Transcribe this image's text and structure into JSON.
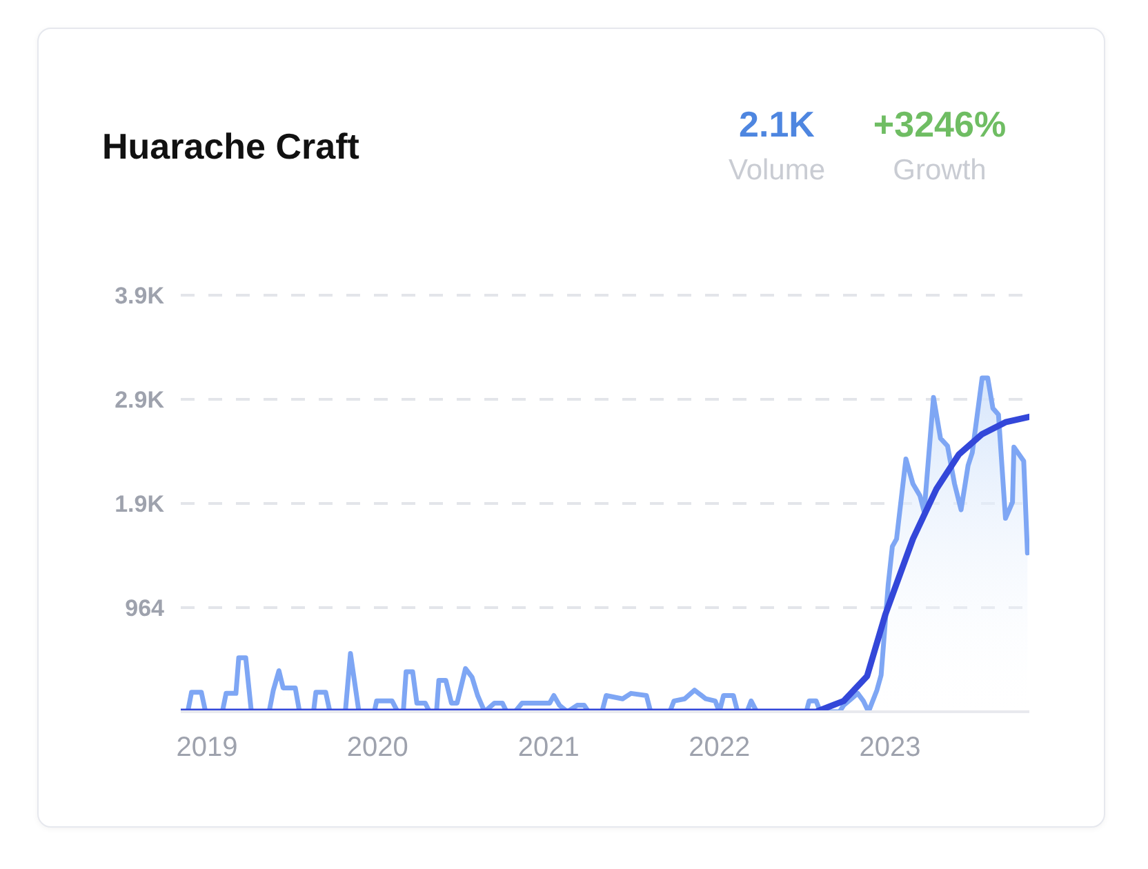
{
  "chart_data": {
    "type": "line",
    "title": "Huarache Craft",
    "annotations": [
      "2.1K",
      "Volume",
      "+3246%",
      "Growth"
    ],
    "xlim": [
      "2018-11-06",
      "2023-10-26"
    ],
    "xticks": [
      "2019",
      "2020",
      "2021",
      "2022",
      "2023"
    ],
    "ylim": [
      0,
      3856
    ],
    "yticks": [
      {
        "value": 964,
        "label": "964"
      },
      {
        "value": 1928,
        "label": "1.9K"
      },
      {
        "value": 2892,
        "label": "2.9K"
      },
      {
        "value": 3856,
        "label": "3.9K"
      }
    ],
    "grid": "y",
    "legend": false,
    "marker": "none",
    "line_style": "solid",
    "series": [
      {
        "type": "area",
        "color": "#7ea6f4",
        "x": [
          "2018-11-06",
          "2018-11-21",
          "2018-11-29",
          "2018-12-20",
          "2018-12-29",
          "2019-02-03",
          "2019-02-11",
          "2019-03-04",
          "2019-03-10",
          "2019-03-25",
          "2019-04-06",
          "2019-05-14",
          "2019-05-23",
          "2019-06-04",
          "2019-06-13",
          "2019-07-09",
          "2019-07-18",
          "2019-08-17",
          "2019-08-22",
          "2019-09-12",
          "2019-09-21",
          "2019-10-24",
          "2019-11-04",
          "2019-11-22",
          "2019-12-25",
          "2019-12-30",
          "2020-02-01",
          "2020-02-13",
          "2020-02-25",
          "2020-03-02",
          "2020-03-16",
          "2020-03-25",
          "2020-04-12",
          "2020-04-21",
          "2020-05-06",
          "2020-05-11",
          "2020-05-26",
          "2020-06-07",
          "2020-06-19",
          "2020-07-07",
          "2020-07-21",
          "2020-08-02",
          "2020-08-17",
          "2020-09-07",
          "2020-09-24",
          "2020-10-03",
          "2020-10-21",
          "2020-11-05",
          "2021-01-03",
          "2021-01-12",
          "2021-01-24",
          "2021-02-10",
          "2021-03-03",
          "2021-03-18",
          "2021-03-27",
          "2021-04-25",
          "2021-05-04",
          "2021-06-08",
          "2021-06-26",
          "2021-07-29",
          "2021-08-07",
          "2021-09-17",
          "2021-09-26",
          "2021-10-19",
          "2021-11-09",
          "2021-12-03",
          "2021-12-23",
          "2022-01-01",
          "2022-01-10",
          "2022-01-31",
          "2022-02-09",
          "2022-03-01",
          "2022-03-10",
          "2022-03-22",
          "2022-07-06",
          "2022-07-12",
          "2022-07-27",
          "2022-08-05",
          "2022-09-15",
          "2022-09-24",
          "2022-10-24",
          "2022-11-05",
          "2022-11-16",
          "2022-12-04",
          "2022-12-13",
          "2022-12-28",
          "2023-01-06",
          "2023-01-15",
          "2023-02-04",
          "2023-02-19",
          "2023-03-06",
          "2023-03-15",
          "2023-04-04",
          "2023-04-19",
          "2023-05-04",
          "2023-05-19",
          "2023-06-02",
          "2023-06-17",
          "2023-06-26",
          "2023-07-17",
          "2023-07-29",
          "2023-08-09",
          "2023-08-21",
          "2023-09-05",
          "2023-09-20",
          "2023-09-23",
          "2023-10-14",
          "2023-10-22"
        ],
        "values": [
          0,
          0,
          180,
          180,
          0,
          0,
          170,
          170,
          500,
          500,
          0,
          0,
          200,
          380,
          220,
          220,
          0,
          0,
          180,
          180,
          0,
          0,
          540,
          0,
          0,
          100,
          100,
          0,
          0,
          370,
          370,
          80,
          80,
          0,
          0,
          290,
          290,
          80,
          80,
          400,
          320,
          150,
          0,
          80,
          80,
          0,
          0,
          80,
          80,
          150,
          60,
          0,
          60,
          60,
          0,
          0,
          150,
          120,
          170,
          150,
          0,
          0,
          100,
          120,
          200,
          120,
          100,
          0,
          150,
          150,
          0,
          0,
          100,
          0,
          0,
          100,
          100,
          0,
          0,
          60,
          170,
          100,
          0,
          200,
          340,
          1170,
          1530,
          1600,
          2340,
          2110,
          2000,
          1850,
          2910,
          2530,
          2460,
          2110,
          1870,
          2280,
          2400,
          3090,
          3090,
          2810,
          2750,
          1790,
          1940,
          2450,
          2320,
          1470
        ]
      },
      {
        "type": "line",
        "color": "#3347d9",
        "x": [
          "2018-11-06",
          "2022-07-27",
          "2022-09-24",
          "2022-11-13",
          "2022-12-22",
          "2023-02-19",
          "2023-04-10",
          "2023-05-28",
          "2023-07-17",
          "2023-09-05",
          "2023-10-26"
        ],
        "values": [
          0,
          0,
          100,
          330,
          900,
          1600,
          2060,
          2380,
          2570,
          2680,
          2730
        ]
      }
    ]
  }
}
